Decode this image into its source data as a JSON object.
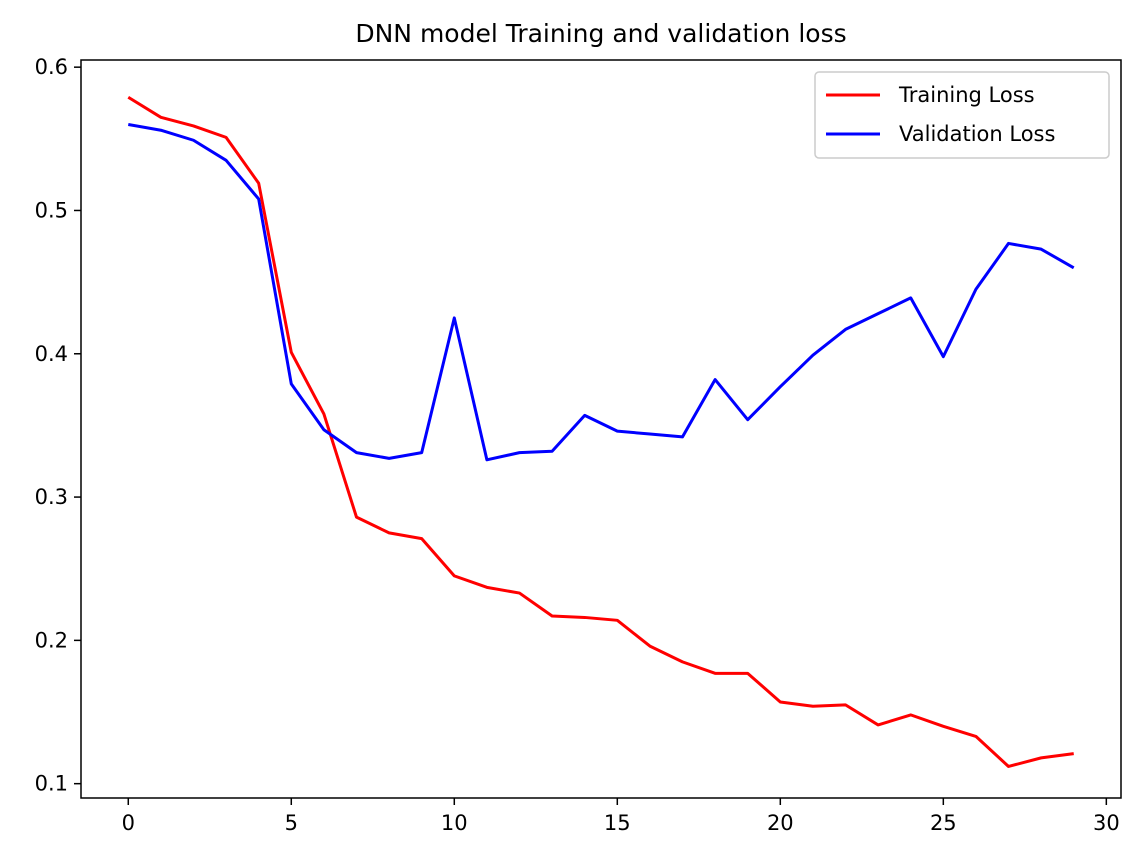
{
  "chart_data": {
    "type": "line",
    "title": "DNN model Training and validation loss",
    "xlabel": "",
    "ylabel": "",
    "xlim": [
      -1.45,
      30.45
    ],
    "ylim": [
      0.09,
      0.605
    ],
    "xticks": [
      0,
      5,
      10,
      15,
      20,
      25,
      30
    ],
    "yticks": [
      0.1,
      0.2,
      0.3,
      0.4,
      0.5,
      0.6
    ],
    "ytick_labels": [
      "0.1",
      "0.2",
      "0.3",
      "0.4",
      "0.5",
      "0.6"
    ],
    "grid": false,
    "legend_position": "top-right",
    "x": [
      0,
      1,
      2,
      3,
      4,
      5,
      6,
      7,
      8,
      9,
      10,
      11,
      12,
      13,
      14,
      15,
      16,
      17,
      18,
      19,
      20,
      21,
      22,
      23,
      24,
      25,
      26,
      27,
      28,
      29
    ],
    "series": [
      {
        "name": "Training Loss",
        "color": "#ff0000",
        "values": [
          0.579,
          0.565,
          0.559,
          0.551,
          0.519,
          0.401,
          0.358,
          0.286,
          0.275,
          0.271,
          0.245,
          0.237,
          0.233,
          0.217,
          0.216,
          0.214,
          0.196,
          0.185,
          0.177,
          0.177,
          0.157,
          0.154,
          0.155,
          0.141,
          0.148,
          0.14,
          0.133,
          0.112,
          0.118,
          0.121
        ]
      },
      {
        "name": "Validation Loss",
        "color": "#0000ff",
        "values": [
          0.56,
          0.556,
          0.549,
          0.535,
          0.508,
          0.379,
          0.347,
          0.331,
          0.327,
          0.331,
          0.425,
          0.326,
          0.331,
          0.332,
          0.357,
          0.346,
          0.344,
          0.342,
          0.382,
          0.354,
          0.377,
          0.399,
          0.417,
          0.428,
          0.439,
          0.398,
          0.445,
          0.477,
          0.473,
          0.46
        ]
      }
    ]
  }
}
